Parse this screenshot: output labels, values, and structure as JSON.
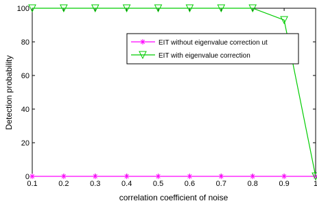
{
  "chart_data": {
    "type": "line",
    "x": [
      0.1,
      0.2,
      0.3,
      0.4,
      0.5,
      0.6,
      0.7,
      0.8,
      0.9,
      1
    ],
    "series": [
      {
        "name": "EIT without eigenvalue correction ut",
        "values": [
          0,
          0,
          0,
          0,
          0,
          0,
          0,
          0,
          0,
          0
        ],
        "color": "#ff00ff",
        "marker": "asterisk"
      },
      {
        "name": "EIT with eigenvalue correction",
        "values": [
          100,
          100,
          100,
          100,
          100,
          100,
          100,
          100,
          93,
          0
        ],
        "color": "#00cc00",
        "marker": "triangle-down"
      }
    ],
    "title": "",
    "xlabel": "correlation coefficient of noise",
    "ylabel": "Detection probability",
    "xlim": [
      0.1,
      1
    ],
    "ylim": [
      0,
      100
    ],
    "xticks": [
      "0.1",
      "0.2",
      "0.3",
      "0.4",
      "0.5",
      "0.6",
      "0.7",
      "0.8",
      "0.9",
      "1"
    ],
    "yticks": [
      "0",
      "20",
      "40",
      "60",
      "80",
      "100"
    ],
    "grid": false,
    "legend_position": "top-right"
  }
}
